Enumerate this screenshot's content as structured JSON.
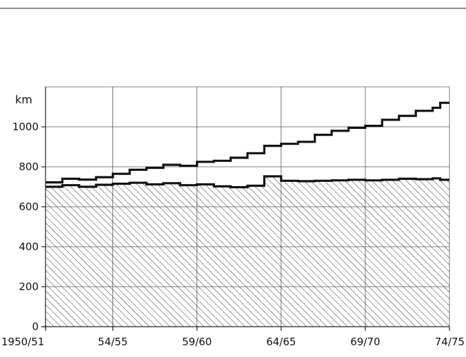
{
  "chart_data": {
    "type": "line",
    "ylabel": "km",
    "ylim": [
      0,
      1200
    ],
    "yticks": [
      0,
      200,
      400,
      600,
      800,
      1000
    ],
    "xtick_labels": [
      "1950/51",
      "54/55",
      "59/60",
      "64/65",
      "69/70",
      "74/75"
    ],
    "x": [
      "1950/51",
      "51/52",
      "52/53",
      "53/54",
      "54/55",
      "55/56",
      "56/57",
      "57/58",
      "58/59",
      "59/60",
      "60/61",
      "61/62",
      "62/63",
      "63/64",
      "64/65",
      "65/66",
      "66/67",
      "67/68",
      "68/69",
      "69/70",
      "70/71",
      "71/72",
      "72/73",
      "73/74"
    ],
    "grid": true,
    "series": [
      {
        "values": [
          722,
          740,
          736,
          748,
          765,
          785,
          795,
          810,
          805,
          825,
          830,
          845,
          868,
          905,
          915,
          925,
          960,
          980,
          995,
          1005,
          1035,
          1055,
          1080,
          1095
        ]
      },
      {
        "fill": "hatched",
        "values": [
          700,
          708,
          700,
          710,
          715,
          720,
          712,
          718,
          708,
          712,
          702,
          698,
          705,
          752,
          730,
          728,
          730,
          732,
          735,
          732,
          735,
          740,
          738,
          742
        ]
      }
    ],
    "x_end": "74/75",
    "last_values": [
      1120,
      735
    ]
  }
}
